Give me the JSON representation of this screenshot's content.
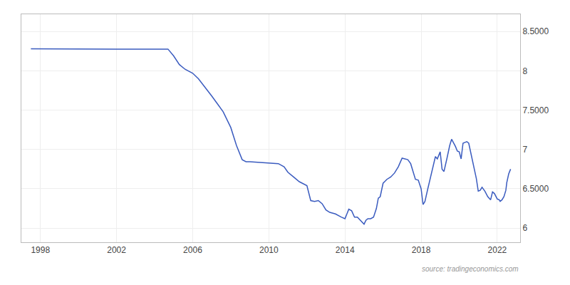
{
  "chart_data": {
    "type": "line",
    "x": [
      1997.5,
      1998.0,
      1999.0,
      2000.0,
      2001.0,
      2002.0,
      2003.0,
      2004.0,
      2004.7,
      2005.0,
      2005.3,
      2005.6,
      2006.0,
      2006.3,
      2006.6,
      2007.0,
      2007.3,
      2007.6,
      2008.0,
      2008.3,
      2008.6,
      2008.8,
      2009.0,
      2009.5,
      2010.0,
      2010.3,
      2010.5,
      2010.8,
      2011.0,
      2011.3,
      2011.6,
      2012.0,
      2012.2,
      2012.4,
      2012.6,
      2012.8,
      2013.0,
      2013.2,
      2013.5,
      2013.8,
      2014.0,
      2014.1,
      2014.2,
      2014.35,
      2014.5,
      2014.65,
      2014.8,
      2015.0,
      2015.1,
      2015.2,
      2015.35,
      2015.5,
      2015.65,
      2015.75,
      2015.85,
      2016.0,
      2016.2,
      2016.4,
      2016.6,
      2016.8,
      2017.0,
      2017.15,
      2017.3,
      2017.45,
      2017.6,
      2017.7,
      2017.85,
      2018.0,
      2018.1,
      2018.2,
      2018.35,
      2018.5,
      2018.65,
      2018.75,
      2018.85,
      2019.0,
      2019.1,
      2019.2,
      2019.35,
      2019.5,
      2019.6,
      2019.7,
      2019.8,
      2019.9,
      2020.0,
      2020.1,
      2020.2,
      2020.3,
      2020.4,
      2020.5,
      2020.6,
      2020.7,
      2020.8,
      2020.9,
      2021.0,
      2021.1,
      2021.2,
      2021.35,
      2021.5,
      2021.65,
      2021.75,
      2021.85,
      2022.0,
      2022.1,
      2022.15,
      2022.25,
      2022.35,
      2022.45,
      2022.5,
      2022.6,
      2022.7
    ],
    "values": [
      8.28,
      8.279,
      8.278,
      8.278,
      8.277,
      8.277,
      8.277,
      8.277,
      8.277,
      8.19,
      8.08,
      8.02,
      7.97,
      7.9,
      7.81,
      7.68,
      7.58,
      7.48,
      7.28,
      7.05,
      6.87,
      6.845,
      6.845,
      6.835,
      6.827,
      6.825,
      6.82,
      6.78,
      6.71,
      6.65,
      6.59,
      6.54,
      6.35,
      6.34,
      6.35,
      6.31,
      6.23,
      6.2,
      6.18,
      6.14,
      6.12,
      6.18,
      6.24,
      6.22,
      6.14,
      6.14,
      6.1,
      6.05,
      6.1,
      6.12,
      6.12,
      6.14,
      6.25,
      6.38,
      6.4,
      6.57,
      6.62,
      6.65,
      6.7,
      6.78,
      6.89,
      6.88,
      6.87,
      6.82,
      6.7,
      6.62,
      6.61,
      6.5,
      6.3,
      6.34,
      6.5,
      6.66,
      6.82,
      6.91,
      6.88,
      6.97,
      6.75,
      6.72,
      6.88,
      7.05,
      7.13,
      7.09,
      7.04,
      6.98,
      6.97,
      6.88,
      7.08,
      7.09,
      7.1,
      7.08,
      6.97,
      6.85,
      6.76,
      6.63,
      6.47,
      6.48,
      6.52,
      6.47,
      6.4,
      6.36,
      6.46,
      6.44,
      6.37,
      6.36,
      6.34,
      6.36,
      6.4,
      6.48,
      6.58,
      6.69,
      6.75
    ],
    "color": "#3a5bbf",
    "xlim": [
      1997.0,
      2023.2
    ],
    "xticks": [
      1998,
      2002,
      2006,
      2010,
      2014,
      2018,
      2022
    ],
    "ylim": [
      5.82,
      8.72
    ],
    "yticks": [
      6,
      {
        "value": 6.5,
        "label": "6.5000"
      },
      7,
      {
        "value": 7.5,
        "label": "7.5000"
      },
      8,
      {
        "value": 8.5,
        "label": "8.5000"
      }
    ],
    "grid": true,
    "annotations": [
      "source: tradingeconomics.com"
    ]
  }
}
